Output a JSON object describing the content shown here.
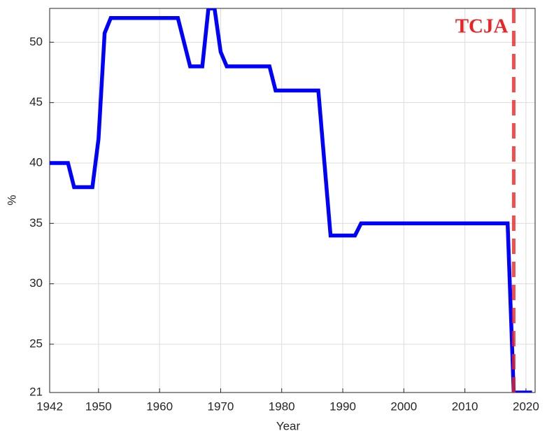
{
  "chart_data": {
    "type": "line",
    "xlabel": "Year",
    "ylabel": "%",
    "x": [
      1942,
      1943,
      1944,
      1945,
      1946,
      1947,
      1948,
      1949,
      1950,
      1951,
      1952,
      1953,
      1954,
      1955,
      1956,
      1957,
      1958,
      1959,
      1960,
      1961,
      1962,
      1963,
      1964,
      1965,
      1966,
      1967,
      1968,
      1969,
      1970,
      1971,
      1972,
      1973,
      1974,
      1975,
      1976,
      1977,
      1978,
      1979,
      1980,
      1981,
      1982,
      1983,
      1984,
      1985,
      1986,
      1987,
      1988,
      1989,
      1990,
      1991,
      1992,
      1993,
      1994,
      1995,
      1996,
      1997,
      1998,
      1999,
      2000,
      2001,
      2002,
      2003,
      2004,
      2005,
      2006,
      2007,
      2008,
      2009,
      2010,
      2011,
      2012,
      2013,
      2014,
      2015,
      2016,
      2017,
      2018,
      2019,
      2020,
      2021
    ],
    "series": [
      {
        "color": "#0000ff",
        "values": [
          40,
          40,
          40,
          40,
          38,
          38,
          38,
          38,
          42,
          50.75,
          52,
          52,
          52,
          52,
          52,
          52,
          52,
          52,
          52,
          52,
          52,
          52,
          50,
          48,
          48,
          48,
          52.8,
          52.8,
          49.2,
          48,
          48,
          48,
          48,
          48,
          48,
          48,
          48,
          46,
          46,
          46,
          46,
          46,
          46,
          46,
          46,
          40,
          34,
          34,
          34,
          34,
          34,
          35,
          35,
          35,
          35,
          35,
          35,
          35,
          35,
          35,
          35,
          35,
          35,
          35,
          35,
          35,
          35,
          35,
          35,
          35,
          35,
          35,
          35,
          35,
          35,
          35,
          21,
          21,
          21,
          21
        ]
      }
    ],
    "xlim": [
      1942,
      2021.5
    ],
    "ylim": [
      21,
      52.8
    ],
    "xticks": [
      1942,
      1950,
      1960,
      1970,
      1980,
      1990,
      2000,
      2010,
      2020
    ],
    "yticks": [
      21,
      25,
      30,
      35,
      40,
      45,
      50
    ],
    "grid": true,
    "annotation": {
      "text": "TCJA",
      "x": 2018,
      "color": "#ee2222"
    }
  }
}
